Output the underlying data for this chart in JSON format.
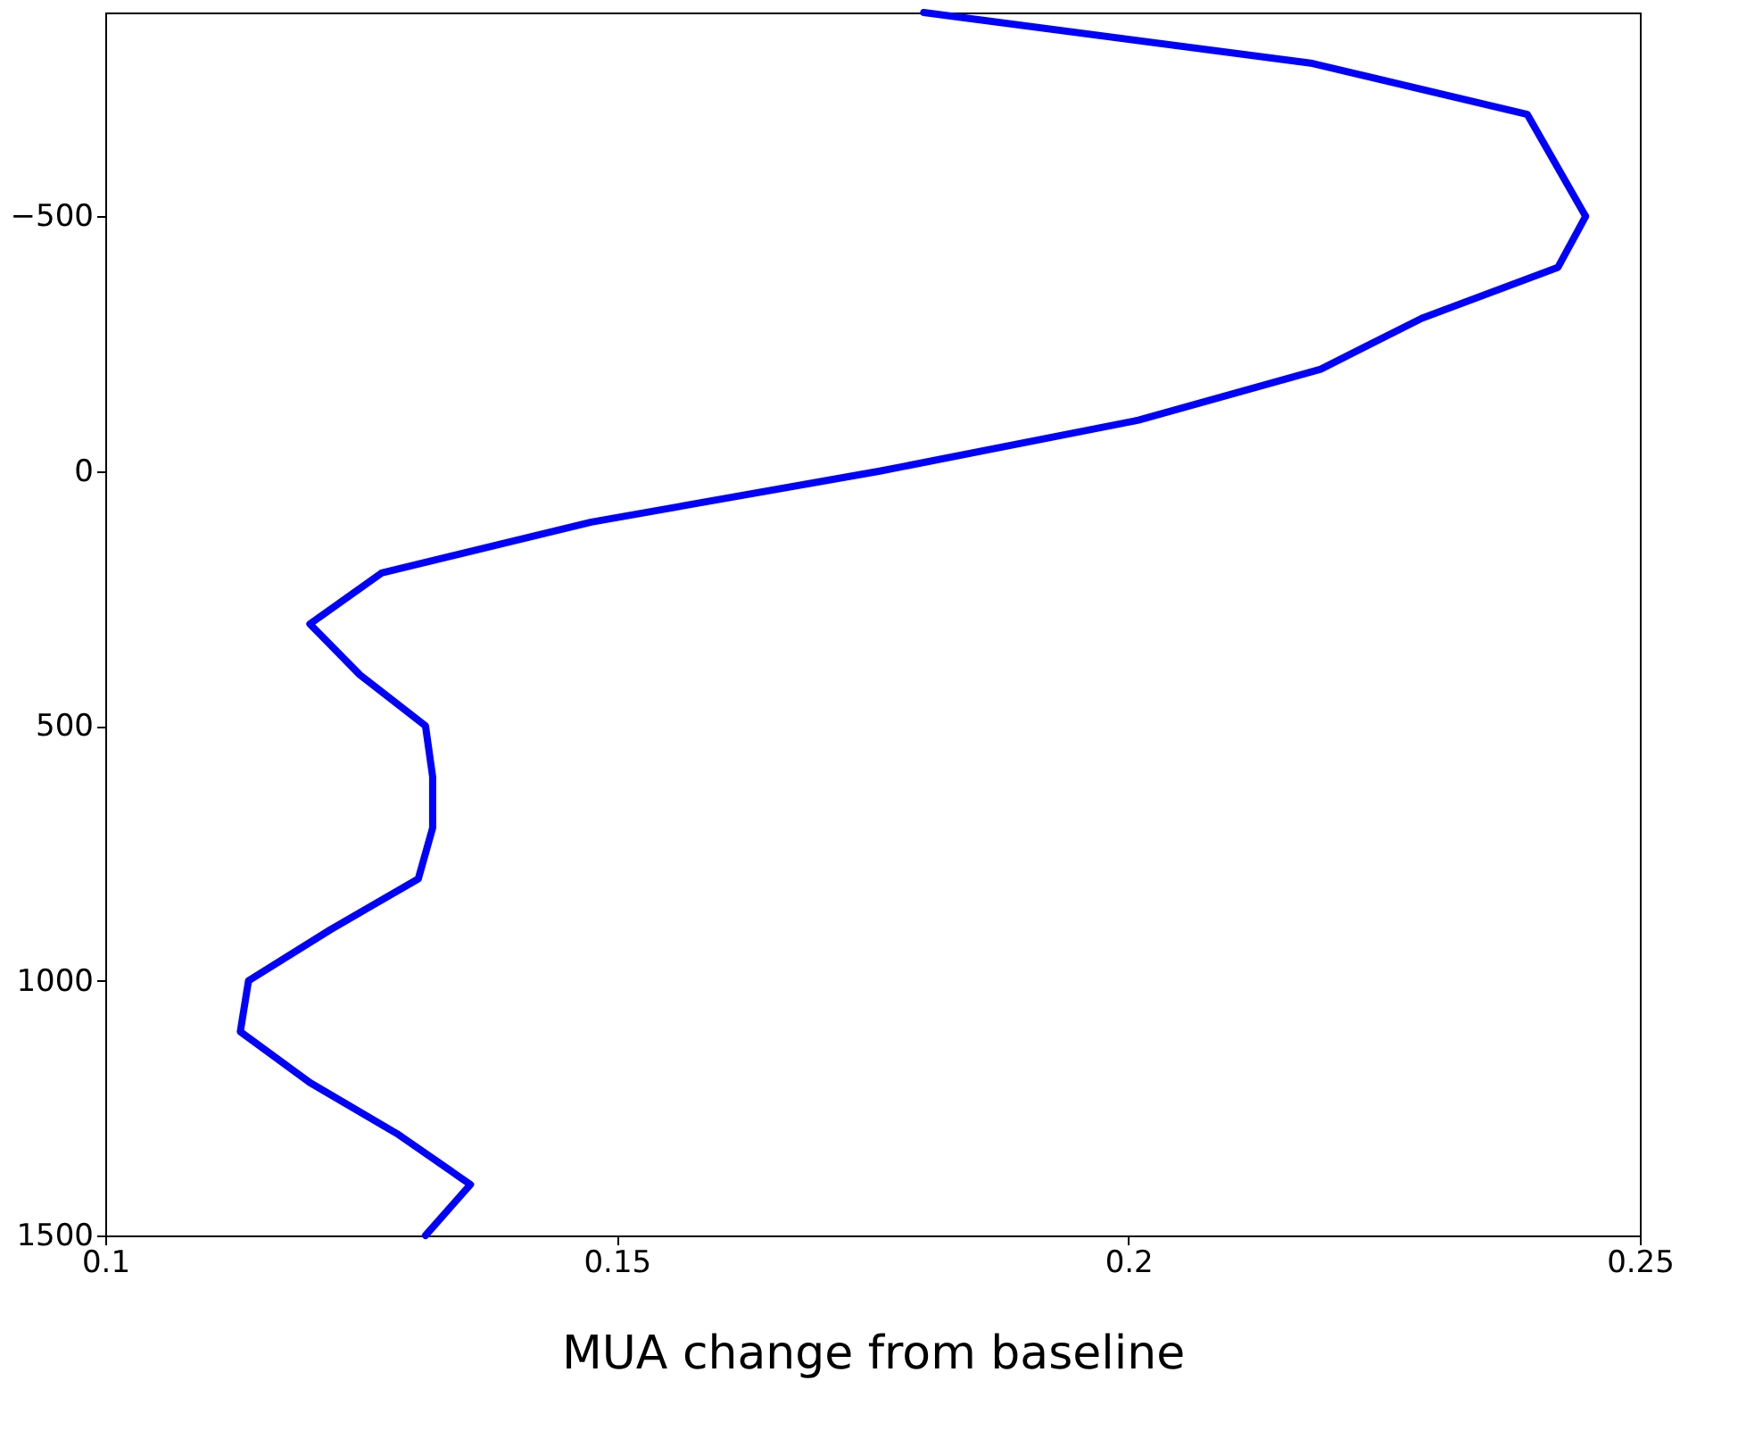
{
  "chart_data": {
    "type": "line",
    "xlabel": "MUA change from baseline",
    "series": [
      {
        "color": "#0000ff",
        "x": [
          0.18,
          0.218,
          0.239,
          0.2447,
          0.242,
          0.2287,
          0.2188,
          0.201,
          0.1757,
          0.1475,
          0.127,
          0.12,
          0.1249,
          0.1313,
          0.132,
          0.132,
          0.1306,
          0.122,
          0.114,
          0.1132,
          0.12,
          0.1285,
          0.1357,
          0.1313
        ],
        "values": [
          -900,
          -800,
          -700,
          -500,
          -400,
          -300,
          -200,
          -100,
          0,
          100,
          200,
          300,
          400,
          500,
          600,
          700,
          800,
          900,
          1000,
          1100,
          1200,
          1300,
          1400,
          1500
        ]
      }
    ],
    "xlim": [
      0.1,
      0.25
    ],
    "xticks": [
      0.1,
      0.15,
      0.2,
      0.25
    ],
    "ylim": [
      1500,
      -900
    ],
    "yticks": [
      -500,
      0,
      500,
      1000,
      1500
    ],
    "grid": false,
    "marker": "none",
    "line_style": "solid"
  }
}
